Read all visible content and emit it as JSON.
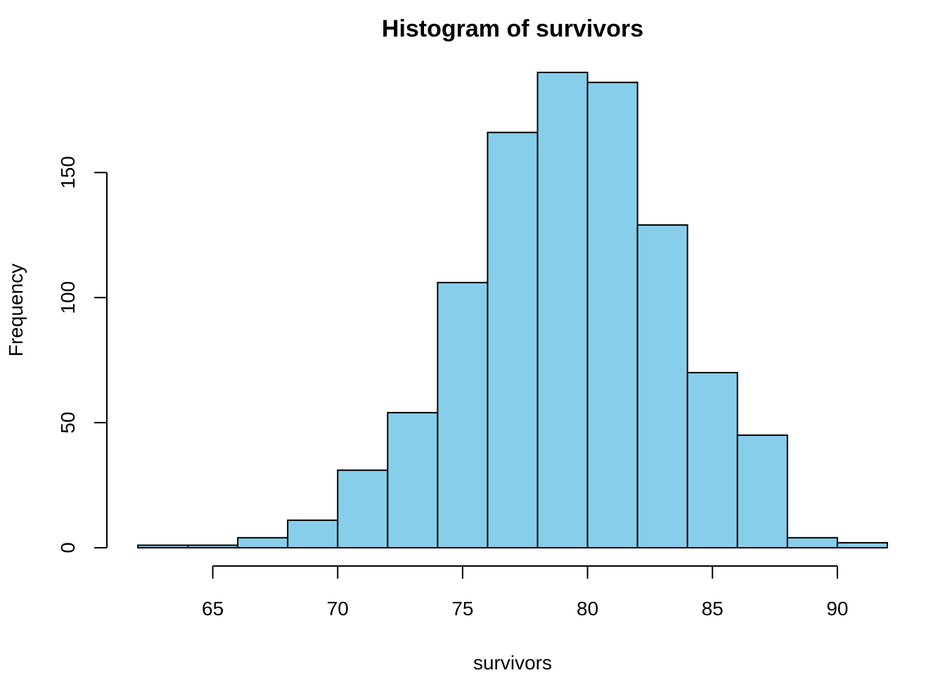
{
  "chart_data": {
    "type": "bar",
    "title": "Histogram of survivors",
    "xlabel": "survivors",
    "ylabel": "Frequency",
    "bins": [
      {
        "start": 62,
        "end": 64,
        "count": 1
      },
      {
        "start": 64,
        "end": 66,
        "count": 1
      },
      {
        "start": 66,
        "end": 68,
        "count": 4
      },
      {
        "start": 68,
        "end": 70,
        "count": 11
      },
      {
        "start": 70,
        "end": 72,
        "count": 31
      },
      {
        "start": 72,
        "end": 74,
        "count": 54
      },
      {
        "start": 74,
        "end": 76,
        "count": 106
      },
      {
        "start": 76,
        "end": 78,
        "count": 166
      },
      {
        "start": 78,
        "end": 80,
        "count": 190
      },
      {
        "start": 80,
        "end": 82,
        "count": 186
      },
      {
        "start": 82,
        "end": 84,
        "count": 129
      },
      {
        "start": 84,
        "end": 86,
        "count": 70
      },
      {
        "start": 86,
        "end": 88,
        "count": 45
      },
      {
        "start": 88,
        "end": 90,
        "count": 4
      },
      {
        "start": 90,
        "end": 92,
        "count": 2
      }
    ],
    "xlim": [
      62,
      92
    ],
    "ylim": [
      0,
      190
    ],
    "x_ticks": [
      65,
      70,
      75,
      80,
      85,
      90
    ],
    "x_tick_labels": [
      "65",
      "70",
      "75",
      "80",
      "85",
      "90"
    ],
    "y_ticks": [
      0,
      50,
      100,
      150
    ],
    "y_tick_labels": [
      "0",
      "50",
      "100",
      "150"
    ],
    "bar_color": "#87CEEB",
    "grid": false,
    "legend": "none"
  }
}
